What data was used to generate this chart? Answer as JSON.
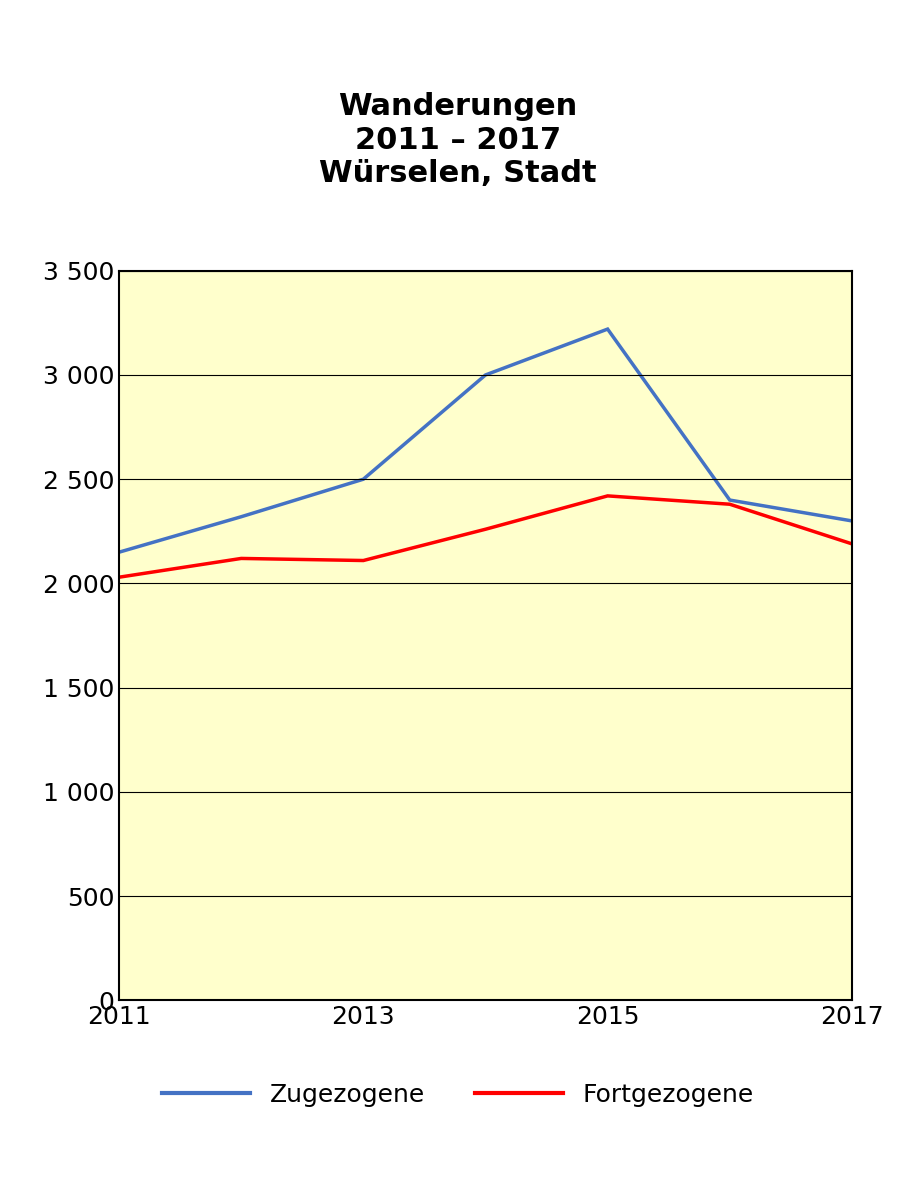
{
  "title": "Wanderungen\n2011 – 2017\nWürselen, Stadt",
  "years": [
    2011,
    2012,
    2013,
    2014,
    2015,
    2016,
    2017
  ],
  "zugezogene": [
    2150,
    2320,
    2500,
    3000,
    3220,
    2400,
    2300
  ],
  "fortgezogene": [
    2030,
    2120,
    2110,
    2260,
    2420,
    2380,
    2190
  ],
  "zugezogene_color": "#4472C4",
  "fortgezogene_color": "#FF0000",
  "background_color": "#FFFFCC",
  "fig_background": "#FFFFFF",
  "ylim": [
    0,
    3500
  ],
  "yticks": [
    0,
    500,
    1000,
    1500,
    2000,
    2500,
    3000,
    3500
  ],
  "xticks": [
    2011,
    2013,
    2015,
    2017
  ],
  "xlim": [
    2011,
    2017
  ],
  "line_width": 2.5,
  "title_fontsize": 22,
  "tick_fontsize": 18,
  "legend_fontsize": 18,
  "legend_zugezogene": "Zugezogene",
  "legend_fortgezogene": "Fortgezogene",
  "figsize": [
    9.16,
    11.77
  ],
  "dpi": 100
}
